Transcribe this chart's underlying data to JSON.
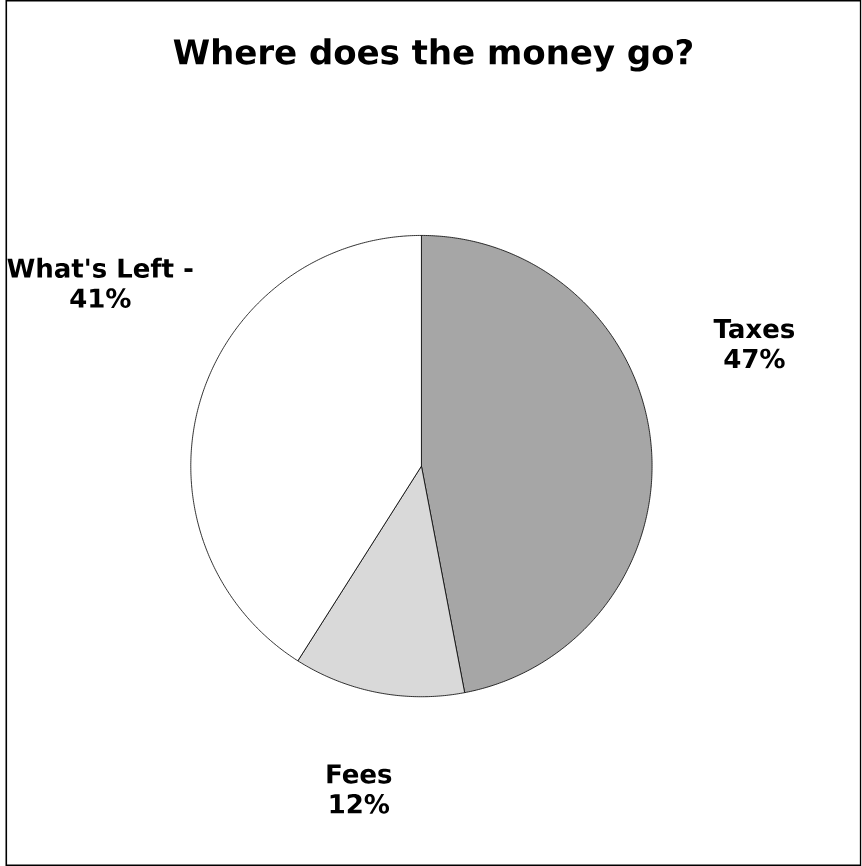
{
  "chart_data": {
    "type": "pie",
    "title": "Where does the money go?",
    "categories": [
      "Taxes",
      "Fees",
      "What's Left -"
    ],
    "values": [
      47,
      12,
      41
    ],
    "value_labels": [
      "47%",
      "12%",
      "41%"
    ],
    "colors": [
      "#a6a6a6",
      "#d9d9d9",
      "#ffffff"
    ]
  }
}
